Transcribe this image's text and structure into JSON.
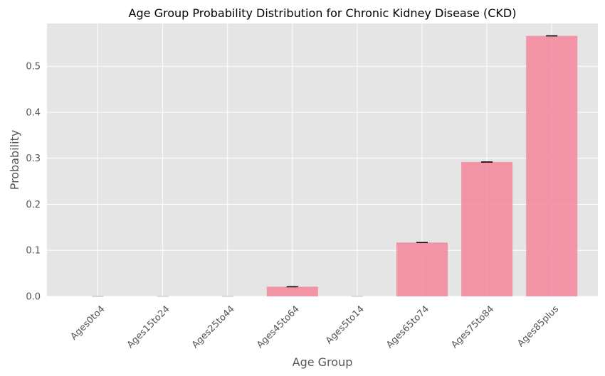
{
  "chart_data": {
    "type": "bar",
    "title": "Age Group Probability Distribution for Chronic Kidney Disease (CKD)",
    "xlabel": "Age Group",
    "ylabel": "Probability",
    "categories": [
      "Ages0to4",
      "Ages15to24",
      "Ages25to44",
      "Ages45to64",
      "Ages5to14",
      "Ages65to74",
      "Ages75to84",
      "Ages85plus"
    ],
    "values": [
      0.0,
      0.0,
      0.0,
      0.021,
      0.0,
      0.117,
      0.292,
      0.566
    ],
    "error_bars": true,
    "ylim": [
      0,
      0.593
    ],
    "yticks": [
      "0.0",
      "0.1",
      "0.2",
      "0.3",
      "0.4",
      "0.5"
    ],
    "grid": true,
    "colors": {
      "bar": "#f4859b",
      "plot_bg": "#e5e5e5",
      "grid": "#ffffff",
      "text": "#555555",
      "title": "#000000",
      "errorbar": "#000000"
    }
  }
}
